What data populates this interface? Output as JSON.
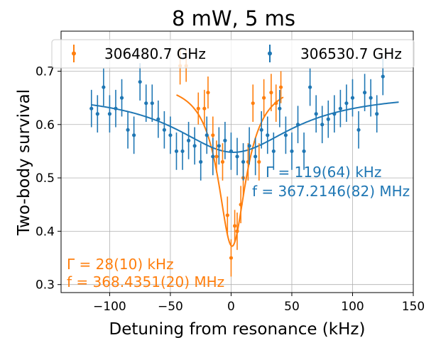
{
  "chart_data": {
    "type": "scatter",
    "title": "8 mW, 5 ms",
    "xlabel": "Detuning from resonance (kHz)",
    "ylabel": "Two-body survival",
    "xlim": [
      -140,
      150
    ],
    "ylim": [
      0.285,
      0.775
    ],
    "xticks": [
      -100,
      -50,
      0,
      50,
      100,
      150
    ],
    "yticks": [
      0.3,
      0.4,
      0.5,
      0.6,
      0.7
    ],
    "xtick_labels": [
      "−100",
      "−50",
      "0",
      "50",
      "100",
      "150"
    ],
    "ytick_labels": [
      "0.3",
      "0.4",
      "0.5",
      "0.6",
      "0.7"
    ],
    "grid": true,
    "legend_position": "top",
    "series": [
      {
        "name": "306480.7 GHz",
        "color": "#ff7f0e",
        "x": [
          -42,
          -37,
          -27,
          -22,
          -19,
          -15,
          -12,
          -7,
          -3,
          0,
          3,
          5,
          8,
          10,
          14,
          18,
          23,
          27,
          33,
          37,
          41
        ],
        "y": [
          0.71,
          0.71,
          0.63,
          0.63,
          0.66,
          0.58,
          0.54,
          0.53,
          0.43,
          0.35,
          0.41,
          0.4,
          0.45,
          0.5,
          0.53,
          0.64,
          0.53,
          0.65,
          0.66,
          0.64,
          0.67
        ],
        "err": [
          0.035,
          0.03,
          0.03,
          0.035,
          0.03,
          0.035,
          0.03,
          0.035,
          0.035,
          0.035,
          0.03,
          0.035,
          0.035,
          0.035,
          0.035,
          0.035,
          0.035,
          0.035,
          0.035,
          0.035,
          0.03
        ],
        "fit": {
          "model": "lorentzian",
          "center": 0.8,
          "amplitude": 0.31,
          "baseline": 0.682,
          "fwhm": 28,
          "x_range": [
            -45,
            43
          ]
        },
        "annotation": [
          "Γ = 28(10) kHz",
          "f = 368.4351(20) MHz"
        ]
      },
      {
        "name": "306530.7 GHz",
        "color": "#1f77b4",
        "x": [
          -115,
          -110,
          -105,
          -100,
          -95,
          -90,
          -85,
          -80,
          -75,
          -70,
          -65,
          -60,
          -55,
          -50,
          -45,
          -40,
          -35,
          -30,
          -25,
          -20,
          -15,
          -10,
          -5,
          0,
          5,
          10,
          15,
          20,
          25,
          30,
          35,
          40,
          45,
          50,
          55,
          60,
          65,
          70,
          75,
          80,
          85,
          90,
          95,
          100,
          105,
          110,
          115,
          120,
          125
        ],
        "y": [
          0.63,
          0.62,
          0.67,
          0.62,
          0.63,
          0.65,
          0.59,
          0.58,
          0.68,
          0.64,
          0.64,
          0.61,
          0.59,
          0.58,
          0.55,
          0.55,
          0.57,
          0.56,
          0.53,
          0.58,
          0.54,
          0.56,
          0.57,
          0.55,
          0.54,
          0.53,
          0.56,
          0.54,
          0.59,
          0.58,
          0.55,
          0.63,
          0.58,
          0.55,
          0.6,
          0.55,
          0.67,
          0.62,
          0.6,
          0.61,
          0.62,
          0.63,
          0.64,
          0.65,
          0.59,
          0.66,
          0.65,
          0.62,
          0.69
        ],
        "err": [
          0.035,
          0.035,
          0.035,
          0.035,
          0.035,
          0.035,
          0.035,
          0.035,
          0.035,
          0.035,
          0.035,
          0.035,
          0.035,
          0.035,
          0.035,
          0.035,
          0.035,
          0.035,
          0.035,
          0.035,
          0.035,
          0.035,
          0.035,
          0.035,
          0.035,
          0.035,
          0.035,
          0.035,
          0.035,
          0.035,
          0.035,
          0.035,
          0.035,
          0.035,
          0.035,
          0.035,
          0.035,
          0.035,
          0.035,
          0.035,
          0.035,
          0.035,
          0.035,
          0.035,
          0.035,
          0.035,
          0.035,
          0.035,
          0.035
        ],
        "fit": {
          "model": "lorentzian",
          "center": 2,
          "amplitude": 0.112,
          "baseline": 0.66,
          "fwhm": 119,
          "x_range": [
            -115,
            138
          ]
        },
        "annotation": [
          "Γ = 119(64) kHz",
          "f = 367.2146(82) MHz"
        ]
      }
    ]
  }
}
